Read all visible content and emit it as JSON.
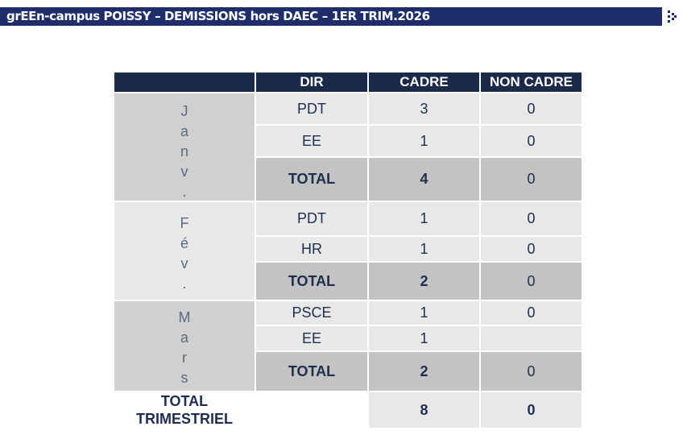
{
  "header": {
    "title": "grEEn-campus POISSY –  DEMISSIONS hors DAEC – 1ER TRIM.2026"
  },
  "icons": {
    "logo": "renault-diamond-icon"
  },
  "colors": {
    "title_bar": "#1f2e6b",
    "table_header": "#1c2a4a",
    "row_light": "#e8e8e8",
    "row_total": "#c3c3c3"
  },
  "table": {
    "columns": [
      "",
      "DIR",
      "CADRE",
      "NON CADRE"
    ],
    "months": [
      {
        "letters": [
          "J",
          "a",
          "n",
          "v",
          "."
        ],
        "rows": [
          {
            "dir": "PDT",
            "cadre": "3",
            "non_cadre": "0"
          },
          {
            "dir": "EE",
            "cadre": "1",
            "non_cadre": "0"
          },
          {
            "dir": "TOTAL",
            "cadre": "4",
            "non_cadre": "0"
          }
        ]
      },
      {
        "letters": [
          "F",
          "é",
          "v",
          "."
        ],
        "rows": [
          {
            "dir": "PDT",
            "cadre": "1",
            "non_cadre": "0"
          },
          {
            "dir": "HR",
            "cadre": "1",
            "non_cadre": "0"
          },
          {
            "dir": "TOTAL",
            "cadre": "2",
            "non_cadre": "0"
          }
        ]
      },
      {
        "letters": [
          "M",
          "a",
          "r",
          "s"
        ],
        "rows": [
          {
            "dir": "PSCE",
            "cadre": "1",
            "non_cadre": "0"
          },
          {
            "dir": "EE",
            "cadre": "1",
            "non_cadre": ""
          },
          {
            "dir": "TOTAL",
            "cadre": "2",
            "non_cadre": "0"
          }
        ]
      }
    ],
    "grand_total": {
      "label_line1": "TOTAL",
      "label_line2": "TRIMESTRIEL",
      "dir": "",
      "cadre": "8",
      "non_cadre": "0"
    }
  }
}
